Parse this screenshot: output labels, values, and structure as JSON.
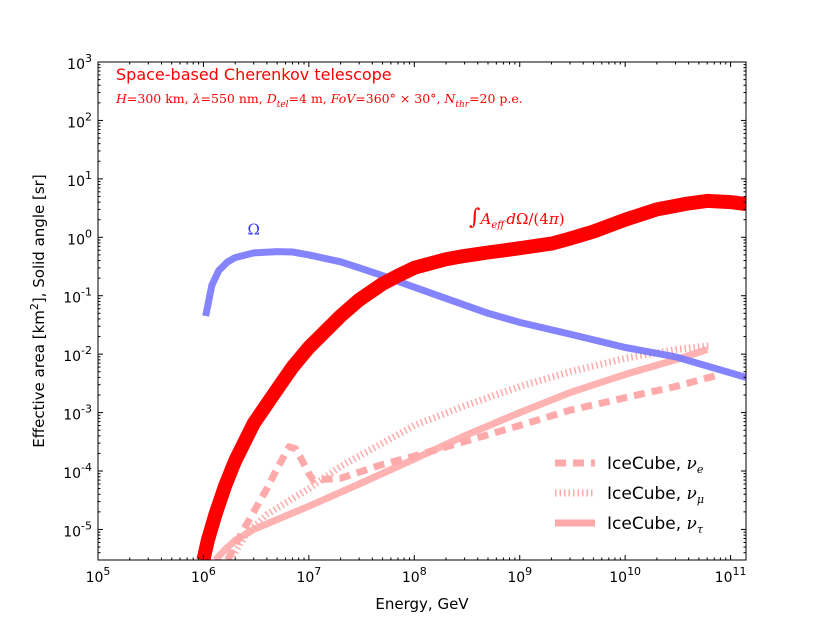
{
  "chart_data": {
    "type": "line",
    "title": "Space-based Cherenkov telescope",
    "subtitle": "H=300 km, λ=550 nm, D_tel=4 m, FoV=360° × 30°, N_thr=20 p.e.",
    "xlabel": "Energy, GeV",
    "ylabel": "Effective area [km²], Solid angle [sr]",
    "xscale": "log",
    "yscale": "log",
    "xlim": [
      100000,
      140000000000
    ],
    "ylim": [
      3e-06,
      1000
    ],
    "x_ticks": [
      {
        "base": "10",
        "exp": "5",
        "value": 100000
      },
      {
        "base": "10",
        "exp": "6",
        "value": 1000000
      },
      {
        "base": "10",
        "exp": "7",
        "value": 10000000
      },
      {
        "base": "10",
        "exp": "8",
        "value": 100000000
      },
      {
        "base": "10",
        "exp": "9",
        "value": 1000000000
      },
      {
        "base": "10",
        "exp": "10",
        "value": 10000000000
      },
      {
        "base": "10",
        "exp": "11",
        "value": 100000000000
      }
    ],
    "y_ticks": [
      {
        "base": "10",
        "exp": "-5",
        "value": 1e-05
      },
      {
        "base": "10",
        "exp": "-4",
        "value": 0.0001
      },
      {
        "base": "10",
        "exp": "-3",
        "value": 0.001
      },
      {
        "base": "10",
        "exp": "-2",
        "value": 0.01
      },
      {
        "base": "10",
        "exp": "-1",
        "value": 0.1
      },
      {
        "base": "10",
        "exp": "0",
        "value": 1
      },
      {
        "base": "10",
        "exp": "1",
        "value": 10
      },
      {
        "base": "10",
        "exp": "2",
        "value": 100
      },
      {
        "base": "10",
        "exp": "3",
        "value": 1000
      }
    ],
    "series": [
      {
        "name": "∫A_eff dΩ/(4π)",
        "color": "#ff0000",
        "style": "solid-thick",
        "points": [
          [
            1000000,
            3e-06
          ],
          [
            1100000,
            6.5e-06
          ],
          [
            1300000,
            1.8e-05
          ],
          [
            1600000,
            5.5e-05
          ],
          [
            2000000,
            0.00015
          ],
          [
            3000000,
            0.00065
          ],
          [
            5000000,
            0.0025
          ],
          [
            7000000,
            0.006
          ],
          [
            10000000,
            0.013
          ],
          [
            20000000,
            0.045
          ],
          [
            30000000,
            0.085
          ],
          [
            50000000,
            0.16
          ],
          [
            70000000,
            0.22
          ],
          [
            100000000,
            0.3
          ],
          [
            200000000,
            0.42
          ],
          [
            300000000,
            0.48
          ],
          [
            500000000,
            0.55
          ],
          [
            1000000000,
            0.65
          ],
          [
            2000000000,
            0.78
          ],
          [
            3000000000,
            0.95
          ],
          [
            5000000000,
            1.25
          ],
          [
            10000000000,
            2.0
          ],
          [
            20000000000,
            3.0
          ],
          [
            40000000000,
            3.8
          ],
          [
            60000000000,
            4.2
          ],
          [
            100000000000,
            4.0
          ],
          [
            140000000000,
            3.7
          ]
        ]
      },
      {
        "name": "Ω",
        "color": "#7777ff",
        "style": "solid",
        "points": [
          [
            1050000,
            0.045
          ],
          [
            1200000,
            0.15
          ],
          [
            1400000,
            0.27
          ],
          [
            1700000,
            0.38
          ],
          [
            2000000,
            0.45
          ],
          [
            3000000,
            0.54
          ],
          [
            5000000,
            0.57
          ],
          [
            7000000,
            0.56
          ],
          [
            10000000,
            0.5
          ],
          [
            20000000,
            0.38
          ],
          [
            30000000,
            0.3
          ],
          [
            50000000,
            0.22
          ],
          [
            100000000,
            0.14
          ],
          [
            200000000,
            0.09
          ],
          [
            500000000,
            0.05
          ],
          [
            1000000000,
            0.035
          ],
          [
            3000000000,
            0.022
          ],
          [
            10000000000,
            0.013
          ],
          [
            30000000000,
            0.009
          ],
          [
            140000000000,
            0.004
          ]
        ]
      },
      {
        "name": "IceCube, ν_e",
        "color": "#ffaaaa",
        "style": "dashed",
        "points": [
          [
            1700000,
            3e-06
          ],
          [
            2200000,
            7.5e-06
          ],
          [
            3000000,
            2e-05
          ],
          [
            4000000,
            5e-05
          ],
          [
            5000000,
            0.00011
          ],
          [
            6500000,
            0.00026
          ],
          [
            7500000,
            0.00024
          ],
          [
            8500000,
            0.00016
          ],
          [
            10000000,
            9e-05
          ],
          [
            11000000,
            7e-05
          ],
          [
            20000000,
            7.5e-05
          ],
          [
            50000000,
            0.00013
          ],
          [
            100000000,
            0.00018
          ],
          [
            300000000,
            0.00032
          ],
          [
            1000000000,
            0.0006
          ],
          [
            3000000000,
            0.0011
          ],
          [
            10000000000,
            0.0018
          ],
          [
            30000000000,
            0.0028
          ],
          [
            80000000000,
            0.0045
          ]
        ]
      },
      {
        "name": "IceCube, ν_μ",
        "color": "#ffaaaa",
        "style": "dotted",
        "points": [
          [
            1800000,
            3e-06
          ],
          [
            2500000,
            8e-06
          ],
          [
            4000000,
            1.8e-05
          ],
          [
            10000000,
            5e-05
          ],
          [
            20000000,
            0.00012
          ],
          [
            50000000,
            0.0003
          ],
          [
            100000000,
            0.0006
          ],
          [
            300000000,
            0.0013
          ],
          [
            1000000000,
            0.0028
          ],
          [
            3000000000,
            0.005
          ],
          [
            10000000000,
            0.0085
          ],
          [
            30000000000,
            0.012
          ],
          [
            65000000000,
            0.014
          ]
        ]
      },
      {
        "name": "IceCube, ν_τ",
        "color": "#ffaaaa",
        "style": "solid",
        "points": [
          [
            1300000,
            3e-06
          ],
          [
            1600000,
            4.5e-06
          ],
          [
            2000000,
            6.5e-06
          ],
          [
            3000000,
            1e-05
          ],
          [
            10000000,
            2.5e-05
          ],
          [
            30000000,
            6e-05
          ],
          [
            100000000,
            0.00016
          ],
          [
            300000000,
            0.0004
          ],
          [
            1000000000,
            0.001
          ],
          [
            3000000000,
            0.0022
          ],
          [
            10000000000,
            0.0045
          ],
          [
            30000000000,
            0.008
          ],
          [
            60000000000,
            0.012
          ]
        ]
      }
    ],
    "annotations": [
      {
        "text": "Ω",
        "color": "#3333ff",
        "at": [
          3000000,
          0.95
        ]
      },
      {
        "text": "∫A_eff dΩ/(4π)",
        "color": "#ff0000",
        "at": [
          300000000,
          2.0
        ]
      }
    ],
    "legend": {
      "position": "bottom-right",
      "entries": [
        {
          "label_base": "IceCube, ",
          "label_symbol": "ν",
          "label_sub": "e",
          "style": "dashed"
        },
        {
          "label_base": "IceCube, ",
          "label_symbol": "ν",
          "label_sub": "μ",
          "style": "dotted"
        },
        {
          "label_base": "IceCube, ",
          "label_symbol": "ν",
          "label_sub": "τ",
          "style": "solid"
        }
      ]
    },
    "grid": false
  }
}
